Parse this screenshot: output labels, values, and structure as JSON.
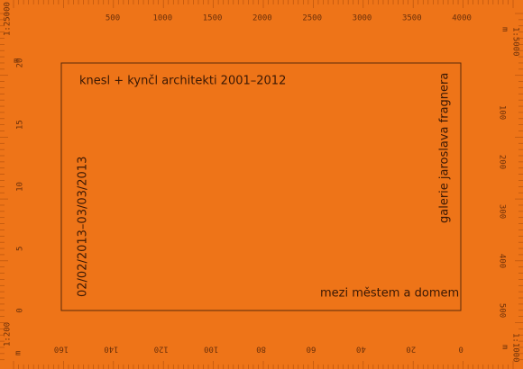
{
  "scales": {
    "top": {
      "ratio": "1:25000",
      "unit": "m",
      "labels": [
        "500",
        "1000",
        "1500",
        "2000",
        "2500",
        "3000",
        "3500",
        "4000"
      ]
    },
    "left": {
      "ratio": "1:200",
      "unit": "m",
      "labels": [
        "20",
        "15",
        "10",
        "5",
        "0"
      ]
    },
    "bottom": {
      "labels": [
        "160",
        "140",
        "120",
        "100",
        "80",
        "60",
        "40",
        "20",
        "0"
      ]
    },
    "right": {
      "ratio": "1:5000",
      "unit": "m",
      "labels": [
        "100",
        "200",
        "300",
        "400",
        "500"
      ]
    },
    "right_bottom": {
      "ratio": "1:1000",
      "unit": "m"
    }
  },
  "poster": {
    "title": "knesl + kynčl architekti 2001–2012",
    "dates": "02/02/2013–03/03/2013",
    "gallery": "galerie jaroslava fragnera",
    "subtitle": "mezi městem a domem"
  }
}
